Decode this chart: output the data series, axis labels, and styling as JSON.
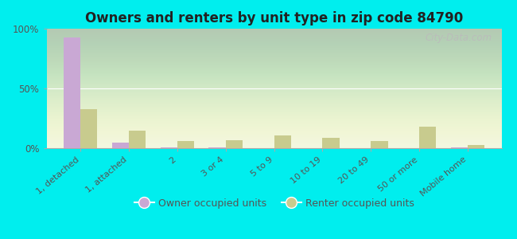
{
  "title": "Owners and renters by unit type in zip code 84790",
  "categories": [
    "1, detached",
    "1, attached",
    "2",
    "3 or 4",
    "5 to 9",
    "10 to 19",
    "20 to 49",
    "50 or more",
    "Mobile home"
  ],
  "owner_values": [
    93,
    5,
    1,
    0.5,
    0,
    0,
    0,
    0,
    0.5
  ],
  "renter_values": [
    33,
    15,
    6,
    7,
    11,
    9,
    6,
    18,
    3
  ],
  "owner_color": "#c9a8d4",
  "renter_color": "#c8cb8e",
  "background_color": "#00eeee",
  "ylim": [
    0,
    100
  ],
  "yticks": [
    0,
    50,
    100
  ],
  "ytick_labels": [
    "0%",
    "50%",
    "100%"
  ],
  "bar_width": 0.35,
  "legend_owner_label": "Owner occupied units",
  "legend_renter_label": "Renter occupied units",
  "watermark": "City-Data.com",
  "plot_bg_color_top": "#d8e8b8",
  "plot_bg_color_bottom": "#f0f5e0"
}
